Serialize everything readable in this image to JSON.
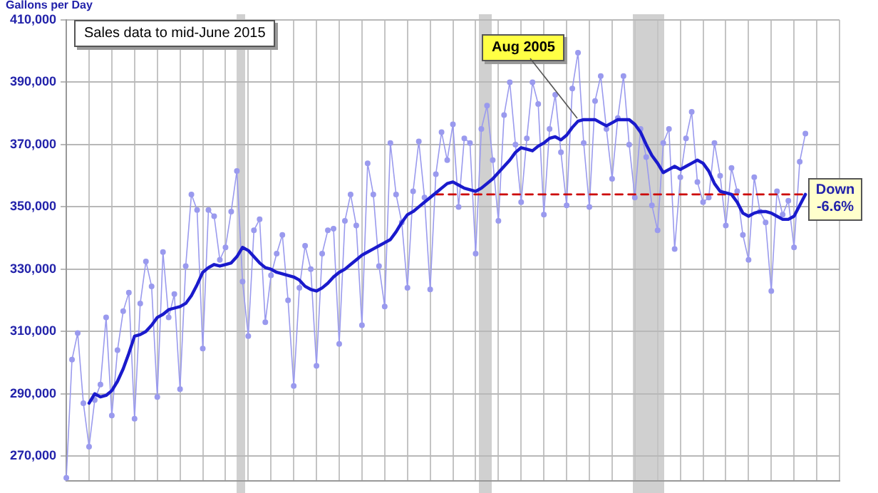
{
  "chart_data": {
    "type": "line",
    "ylabel": "Gallons per Day",
    "annotations": [
      "Sales data to mid-June 2015",
      "Aug 2005",
      "Down -6.6%"
    ],
    "categories": [
      null,
      null,
      null,
      null,
      null,
      null,
      null,
      null,
      null,
      null,
      null,
      null,
      null,
      null,
      null,
      null,
      null,
      null,
      null,
      null,
      null,
      null,
      null,
      null,
      null,
      null,
      null,
      null,
      null,
      null,
      null,
      null,
      null,
      null,
      null,
      null,
      null,
      null,
      null,
      null,
      null,
      null,
      null,
      null,
      null,
      null,
      null,
      null,
      null,
      null,
      null,
      null,
      null,
      null,
      null,
      null,
      null,
      null,
      null,
      null,
      null,
      null,
      null,
      null,
      null,
      null,
      null,
      null,
      null,
      null,
      null,
      null,
      null,
      null,
      null,
      null,
      null,
      null,
      null,
      null,
      null,
      null,
      null,
      null,
      null,
      null,
      null,
      null,
      null,
      null,
      null,
      null,
      null,
      null,
      null,
      null,
      null,
      null,
      null,
      null,
      null,
      null,
      null,
      null,
      null,
      null,
      null,
      null,
      null,
      null,
      null,
      null,
      null,
      null,
      null,
      null,
      null,
      null,
      null,
      null,
      null,
      null,
      null,
      null,
      null,
      null,
      null,
      null,
      null,
      null,
      null,
      null,
      null,
      null,
      null,
      null,
      null
    ],
    "ylim": [
      262000,
      410000
    ],
    "yticks": [
      {
        "value": 270000,
        "label": "270,000"
      },
      {
        "value": 290000,
        "label": "290,000"
      },
      {
        "value": 310000,
        "label": "310,000"
      },
      {
        "value": 330000,
        "label": "330,000"
      },
      {
        "value": 350000,
        "label": "350,000"
      },
      {
        "value": 370000,
        "label": "370,000"
      },
      {
        "value": 390000,
        "label": "390,000"
      },
      {
        "value": 410000,
        "label": "410,000"
      }
    ],
    "grid": true,
    "tick_labels": "y",
    "series": [
      {
        "color": "#9a9aee",
        "marker": "circle",
        "values": [
          263000,
          301000,
          309500,
          287000,
          273000,
          288000,
          293000,
          314500,
          283000,
          304000,
          316500,
          322500,
          282000,
          319000,
          332500,
          324500,
          289000,
          335500,
          314500,
          322000,
          291500,
          331000,
          354000,
          349000,
          304500,
          349000,
          347000,
          333000,
          337000,
          348500,
          361500,
          326000,
          308500,
          342500,
          346000,
          313000,
          328000,
          335000,
          341000,
          320000,
          292500,
          324000,
          337500,
          330000,
          299000,
          335000,
          342500,
          343000,
          306000,
          345500,
          354000,
          344000,
          312000,
          364000,
          354000,
          331000,
          318000,
          370500,
          354000,
          345000,
          324000,
          355000,
          371000,
          353000,
          323500,
          360500,
          374000,
          365000,
          376500,
          350000,
          372000,
          370500,
          335000,
          375000,
          382500,
          365000,
          345500,
          379500,
          390000,
          370000,
          351500,
          372000,
          390000,
          383000,
          347500,
          375000,
          386000,
          367500,
          350500,
          388000,
          399500,
          370500,
          350000,
          384000,
          392000,
          375000,
          359000,
          378500,
          392000,
          370000,
          353000,
          375000,
          366000,
          350500,
          342500,
          370500,
          375000,
          336500,
          359500,
          372000,
          380500,
          358000,
          351500,
          353000,
          370500,
          360000,
          344000,
          362500,
          355000,
          341000,
          333000,
          359500,
          348500,
          345000,
          323000,
          355000,
          347500,
          352000,
          337000,
          364500,
          373500,
          null,
          null,
          null,
          null,
          null,
          null
        ]
      },
      {
        "color": "#1a1acc",
        "marker": "none",
        "values": [
          null,
          null,
          null,
          null,
          287000,
          290000,
          289000,
          289500,
          291000,
          294000,
          298000,
          303000,
          308500,
          309000,
          310000,
          312000,
          314500,
          315500,
          317000,
          317500,
          318000,
          319000,
          321500,
          325000,
          329000,
          330500,
          331500,
          331000,
          331500,
          332000,
          334000,
          337000,
          336000,
          334000,
          332000,
          330500,
          330000,
          329000,
          328500,
          328000,
          327500,
          326500,
          324500,
          323500,
          323000,
          324000,
          325500,
          327500,
          329000,
          330000,
          331500,
          333000,
          334500,
          335500,
          336500,
          337500,
          338500,
          339500,
          342000,
          345000,
          347500,
          348500,
          350000,
          351500,
          353000,
          354500,
          356000,
          357500,
          358000,
          357000,
          356000,
          355500,
          355000,
          356000,
          357500,
          359000,
          361000,
          363000,
          365000,
          367500,
          369000,
          368500,
          368000,
          369500,
          370500,
          372000,
          372500,
          371500,
          373000,
          375500,
          377500,
          378000,
          378000,
          378000,
          377000,
          376000,
          377000,
          378000,
          378000,
          378000,
          376500,
          374000,
          370000,
          366500,
          364000,
          361000,
          362000,
          363000,
          362000,
          363000,
          364000,
          365000,
          364000,
          361500,
          357500,
          355000,
          354500,
          354000,
          351500,
          348000,
          347000,
          348000,
          348500,
          348500,
          348000,
          347000,
          346000,
          346000,
          347000,
          350500,
          354000,
          null,
          null,
          null,
          null,
          null,
          null
        ]
      },
      {
        "color": "#cc0000",
        "marker": "none",
        "line_style": "dashed",
        "values": [
          null,
          null,
          null,
          null,
          null,
          null,
          null,
          null,
          null,
          null,
          null,
          null,
          null,
          null,
          null,
          null,
          null,
          null,
          null,
          null,
          null,
          null,
          null,
          null,
          null,
          null,
          null,
          null,
          null,
          null,
          null,
          null,
          null,
          null,
          null,
          null,
          null,
          null,
          null,
          null,
          null,
          null,
          null,
          null,
          null,
          null,
          null,
          null,
          null,
          null,
          null,
          null,
          null,
          null,
          null,
          null,
          null,
          null,
          null,
          null,
          null,
          null,
          null,
          null,
          null,
          354000,
          354000,
          354000,
          354000,
          354000,
          354000,
          354000,
          354000,
          354000,
          354000,
          354000,
          354000,
          354000,
          354000,
          354000,
          354000,
          354000,
          354000,
          354000,
          354000,
          354000,
          354000,
          354000,
          354000,
          354000,
          354000,
          354000,
          354000,
          354000,
          354000,
          354000,
          354000,
          354000,
          354000,
          354000,
          354000,
          354000,
          354000,
          354000,
          354000,
          354000,
          354000,
          354000,
          354000,
          354000,
          354000,
          354000,
          354000,
          354000,
          354000,
          354000,
          354000,
          354000,
          354000,
          354000,
          354000,
          354000,
          354000,
          354000,
          354000,
          354000,
          354000,
          354000,
          354000,
          354000,
          354000,
          null,
          null,
          null,
          null,
          null,
          null
        ]
      }
    ]
  }
}
